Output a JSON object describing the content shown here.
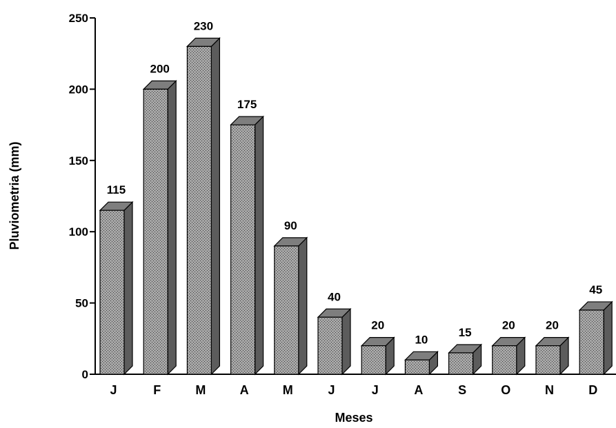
{
  "chart_data": {
    "type": "bar",
    "categories": [
      "J",
      "F",
      "M",
      "A",
      "M",
      "J",
      "J",
      "A",
      "S",
      "O",
      "N",
      "D"
    ],
    "values": [
      115,
      200,
      230,
      175,
      90,
      40,
      20,
      10,
      15,
      20,
      20,
      45
    ],
    "data_labels": [
      "115",
      "200",
      "230",
      "175",
      "90",
      "40",
      "20",
      "10",
      "15",
      "20",
      "20",
      "45"
    ],
    "xlabel": "Meses",
    "ylabel": "Pluviometria (mm)",
    "ylim": [
      0,
      250
    ],
    "yticks": [
      0,
      50,
      100,
      150,
      200,
      250
    ],
    "ytick_labels": [
      "0",
      "50",
      "100",
      "150",
      "200",
      "250"
    ],
    "style": "3d",
    "grid": false,
    "colors": {
      "bar_front": "#9a9a9a",
      "bar_top": "#7e7e7e",
      "bar_side": "#5c5c5c",
      "axis": "#000000"
    }
  }
}
